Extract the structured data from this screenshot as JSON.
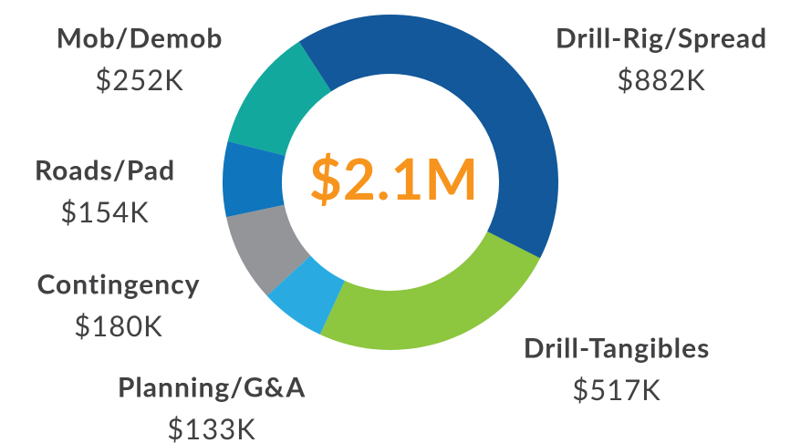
{
  "chart_data": {
    "type": "donut",
    "center_label": "$2.1M",
    "categories": [
      "Drill-Rig/Spread",
      "Drill-Tangibles",
      "Planning/G&A",
      "Contingency",
      "Roads/Pad",
      "Mob/Demob"
    ],
    "values": [
      882,
      517,
      133,
      180,
      154,
      252
    ],
    "value_labels": [
      "$882K",
      "$517K",
      "$133K",
      "$180K",
      "$154K",
      "$252K"
    ],
    "colors": [
      "#12589a",
      "#8dc63f",
      "#29abe2",
      "#939598",
      "#0f75bc",
      "#13a89e"
    ]
  }
}
